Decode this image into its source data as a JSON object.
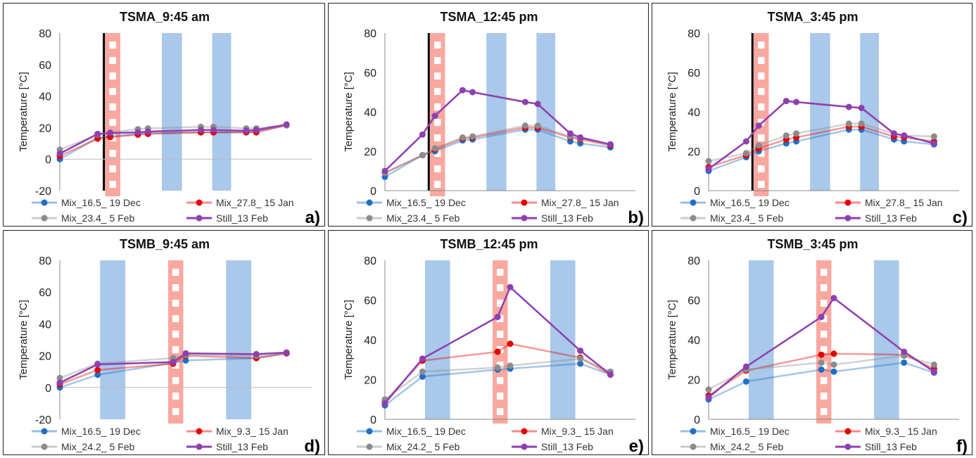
{
  "colors": {
    "blue_series": "#1f6fc5",
    "red_series": "#e60000",
    "grey_series": "#8c8c8c",
    "purple_series": "#8e3fb0",
    "blue_band": "#a9c8ea",
    "red_band": "#f9a8a0"
  },
  "chart_data": [
    {
      "type": "line",
      "panel": "a)",
      "title": "TSMA_9:45 am",
      "ylabel": "Temperature [°C]",
      "ylim": [
        -20,
        80
      ],
      "yticks": [
        "80",
        "60",
        "40",
        "20",
        "0",
        "-20"
      ],
      "grid": false,
      "legend_position": "bottom",
      "x_range": [
        0,
        10
      ],
      "x": [
        0,
        1.5,
        2.0,
        3.1,
        3.5,
        5.6,
        6.1,
        7.4,
        7.8,
        9.0
      ],
      "blue_bands": [
        [
          4.05,
          4.85
        ],
        [
          6.05,
          6.8
        ]
      ],
      "red_dashed_band": [
        1.8,
        2.4
      ],
      "black_line_x": 1.75,
      "series": [
        {
          "name": "Mix_16.5_ 19 Dec",
          "values": [
            0,
            13.5,
            14.5,
            16,
            16.5,
            17,
            17,
            17,
            17.5,
            21.5
          ],
          "color_key": "blue_series"
        },
        {
          "name": "Mix_27.8_ 15 Jan",
          "values": [
            2,
            13,
            14,
            15.5,
            16,
            17,
            17,
            17,
            17,
            21.5
          ],
          "color_key": "red_series"
        },
        {
          "name": "Mix_23.4_ 5 Feb",
          "values": [
            6,
            15.5,
            17,
            19,
            19.5,
            20.5,
            20.5,
            19.5,
            19.5,
            21.5
          ],
          "color_key": "grey_series"
        },
        {
          "name": "Still_13 Feb",
          "values": [
            3.5,
            16,
            16.5,
            17,
            17.5,
            18.5,
            18.5,
            18,
            18.5,
            22
          ],
          "color_key": "purple_series"
        }
      ]
    },
    {
      "type": "line",
      "panel": "b)",
      "title": "TSMA_12:45 pm",
      "ylabel": "Temperature [°C]",
      "ylim": [
        0,
        80
      ],
      "yticks": [
        "80",
        "60",
        "40",
        "20",
        "0"
      ],
      "grid": false,
      "legend_position": "bottom",
      "x_range": [
        0,
        10
      ],
      "x": [
        0,
        1.5,
        2.0,
        3.1,
        3.5,
        5.6,
        6.1,
        7.4,
        7.8,
        9.0
      ],
      "blue_bands": [
        [
          4.05,
          4.85
        ],
        [
          6.05,
          6.8
        ]
      ],
      "red_dashed_band": [
        1.8,
        2.4
      ],
      "black_line_x": 1.75,
      "series": [
        {
          "name": "Mix_16.5_ 19 Dec",
          "values": [
            7,
            18,
            20,
            25.5,
            26,
            31,
            31,
            25,
            24,
            22
          ],
          "color_key": "blue_series"
        },
        {
          "name": "Mix_27.8_ 15 Jan",
          "values": [
            9,
            18,
            21,
            26.5,
            27,
            32,
            32,
            27,
            26,
            23
          ],
          "color_key": "red_series"
        },
        {
          "name": "Mix_23.4_ 5 Feb",
          "values": [
            9,
            18,
            21.5,
            27,
            27.5,
            33,
            33,
            27.5,
            26.5,
            23.5
          ],
          "color_key": "grey_series"
        },
        {
          "name": "Still_13 Feb",
          "values": [
            10,
            28.5,
            38,
            51,
            50,
            45,
            44,
            29,
            27,
            23.5
          ],
          "color_key": "purple_series"
        }
      ]
    },
    {
      "type": "line",
      "panel": "c)",
      "title": "TSMA_3:45 pm",
      "ylabel": "Temperature [°C]",
      "ylim": [
        0,
        80
      ],
      "yticks": [
        "80",
        "60",
        "40",
        "20",
        "0"
      ],
      "grid": false,
      "legend_position": "bottom",
      "x_range": [
        0,
        10
      ],
      "x": [
        0,
        1.5,
        2.0,
        3.1,
        3.5,
        5.6,
        6.1,
        7.4,
        7.8,
        9.0
      ],
      "blue_bands": [
        [
          4.05,
          4.85
        ],
        [
          6.05,
          6.8
        ]
      ],
      "red_dashed_band": [
        1.8,
        2.4
      ],
      "black_line_x": 1.75,
      "series": [
        {
          "name": "Mix_16.5_ 19 Dec",
          "values": [
            10,
            17,
            20,
            24,
            25,
            31,
            31,
            26,
            25,
            23.5
          ],
          "color_key": "blue_series"
        },
        {
          "name": "Mix_27.8_ 15 Jan",
          "values": [
            12,
            18,
            21.5,
            26,
            27,
            32.5,
            32.5,
            27.5,
            27,
            25
          ],
          "color_key": "red_series"
        },
        {
          "name": "Mix_23.4_ 5 Feb",
          "values": [
            15,
            19,
            23,
            28,
            29,
            34,
            34,
            29,
            28,
            27.5
          ],
          "color_key": "grey_series"
        },
        {
          "name": "Still_13 Feb",
          "values": [
            11,
            25,
            33,
            45.5,
            45,
            42.5,
            42,
            29,
            28,
            24
          ],
          "color_key": "purple_series"
        }
      ]
    },
    {
      "type": "line",
      "panel": "d)",
      "title": "TSMB_9:45 am",
      "ylabel": "Temperature [°C]",
      "ylim": [
        -20,
        80
      ],
      "yticks": [
        "80",
        "60",
        "40",
        "20",
        "0",
        "-20"
      ],
      "grid": false,
      "legend_position": "bottom",
      "x_range": [
        0,
        10
      ],
      "x": [
        0,
        1.5,
        4.5,
        5.0,
        7.8,
        9.0
      ],
      "blue_bands": [
        [
          1.6,
          2.6
        ],
        [
          6.6,
          7.6
        ]
      ],
      "red_dashed_band": [
        4.3,
        4.9
      ],
      "series": [
        {
          "name": "Mix_16.5_ 19 Dec",
          "values": [
            0,
            8,
            15.5,
            17,
            18.5,
            21.5
          ],
          "color_key": "blue_series"
        },
        {
          "name": "Mix_9.3_ 15 Jan",
          "values": [
            2,
            11,
            15,
            20,
            18.5,
            21.5
          ],
          "color_key": "red_series"
        },
        {
          "name": "Mix_24.2_ 5 Feb",
          "values": [
            6,
            15,
            18.5,
            20.5,
            20,
            22
          ],
          "color_key": "grey_series"
        },
        {
          "name": "Still_13 Feb",
          "values": [
            3,
            14.5,
            16,
            21.5,
            21,
            22
          ],
          "color_key": "purple_series"
        }
      ]
    },
    {
      "type": "line",
      "panel": "e)",
      "title": "TSMB_12:45 pm",
      "ylabel": "Temperature [°C]",
      "ylim": [
        0,
        80
      ],
      "yticks": [
        "80",
        "60",
        "40",
        "20",
        "0"
      ],
      "grid": false,
      "legend_position": "bottom",
      "x_range": [
        0,
        10
      ],
      "x": [
        0,
        1.5,
        4.5,
        5.0,
        7.8,
        9.0
      ],
      "blue_bands": [
        [
          1.6,
          2.6
        ],
        [
          6.6,
          7.6
        ]
      ],
      "red_dashed_band": [
        4.3,
        4.9
      ],
      "series": [
        {
          "name": "Mix_16.5_ 19 Dec",
          "values": [
            7,
            21.5,
            25,
            25.5,
            28,
            22.5
          ],
          "color_key": "blue_series"
        },
        {
          "name": "Mix_9.3_ 15 Jan",
          "values": [
            9,
            29.5,
            34,
            38,
            31,
            22.5
          ],
          "color_key": "red_series"
        },
        {
          "name": "Mix_24.2_ 5 Feb",
          "values": [
            10,
            24,
            26,
            27,
            30.5,
            24
          ],
          "color_key": "grey_series"
        },
        {
          "name": "Still_13 Feb",
          "values": [
            8,
            30.5,
            51.5,
            66.5,
            34.5,
            22.5
          ],
          "color_key": "purple_series"
        }
      ]
    },
    {
      "type": "line",
      "panel": "f)",
      "title": "TSMB_3:45 pm",
      "ylabel": "Temperature [°C]",
      "ylim": [
        0,
        80
      ],
      "yticks": [
        "80",
        "60",
        "40",
        "20",
        "0"
      ],
      "grid": false,
      "legend_position": "bottom",
      "x_range": [
        0,
        10
      ],
      "x": [
        0,
        1.5,
        4.5,
        5.0,
        7.8,
        9.0
      ],
      "blue_bands": [
        [
          1.6,
          2.6
        ],
        [
          6.6,
          7.6
        ]
      ],
      "red_dashed_band": [
        4.3,
        4.9
      ],
      "series": [
        {
          "name": "Mix_16.5_ 19 Dec",
          "values": [
            10,
            19,
            25,
            24,
            28.5,
            23.5
          ],
          "color_key": "blue_series"
        },
        {
          "name": "Mix_9.3_ 15 Jan",
          "values": [
            12,
            24.5,
            32.5,
            33,
            32.5,
            25.5
          ],
          "color_key": "red_series"
        },
        {
          "name": "Mix_24.2_ 5 Feb",
          "values": [
            15,
            25,
            28.5,
            27.5,
            32,
            27.5
          ],
          "color_key": "grey_series"
        },
        {
          "name": "Still_13 Feb",
          "values": [
            11,
            26.5,
            51.5,
            61,
            34,
            24
          ],
          "color_key": "purple_series"
        }
      ]
    }
  ]
}
